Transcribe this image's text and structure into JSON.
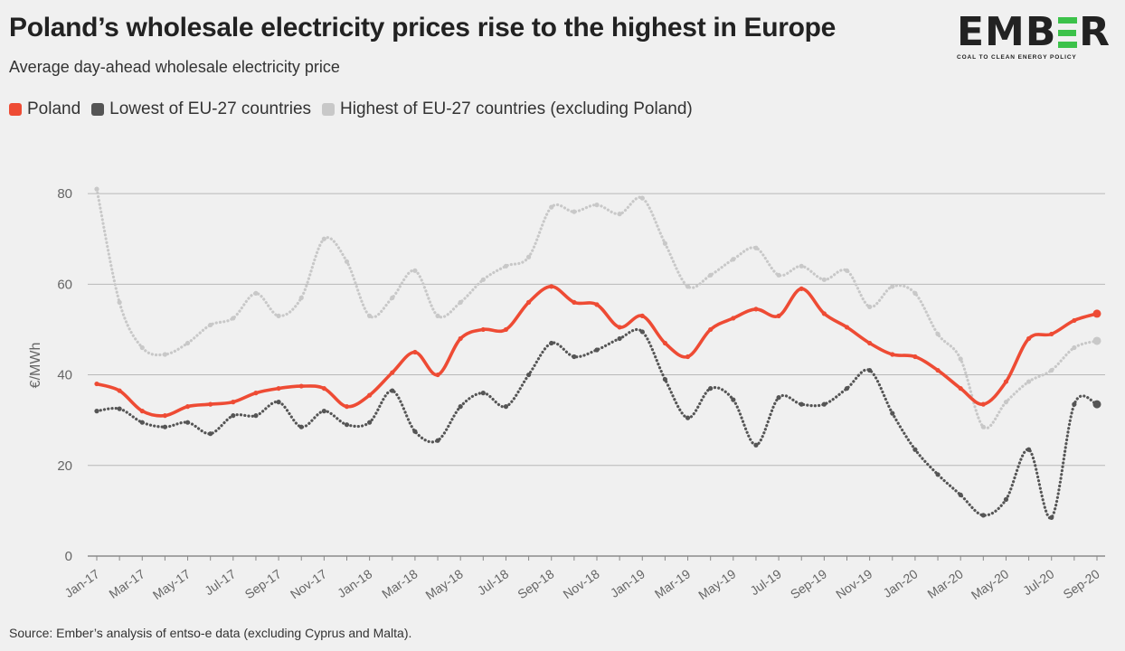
{
  "header": {
    "title": "Poland’s wholesale electricity prices rise to the highest in Europe",
    "subtitle": "Average day-ahead wholesale electricity price"
  },
  "logo": {
    "word_left": "EMB",
    "word_right": "R",
    "tagline": "COAL TO CLEAN ENERGY POLICY",
    "accent_color": "#3cc24a"
  },
  "footer": {
    "source": "Source: Ember’s analysis of entso-e data (excluding Cyprus and Malta)."
  },
  "chart_data": {
    "type": "line",
    "title": "",
    "ylabel": "€/MWh",
    "xlabel": "",
    "ylim": [
      0,
      90
    ],
    "yticks": [
      0,
      20,
      40,
      60,
      80
    ],
    "grid": true,
    "legend_position": "top-left",
    "x_tick_labels": [
      "Jan-17",
      "Mar-17",
      "May-17",
      "Jul-17",
      "Sep-17",
      "Nov-17",
      "Jan-18",
      "Mar-18",
      "May-18",
      "Jul-18",
      "Sep-18",
      "Nov-18",
      "Jan-19",
      "Mar-19",
      "May-19",
      "Jul-19",
      "Sep-19",
      "Nov-19",
      "Jan-20",
      "Mar-20",
      "May-20",
      "Jul-20",
      "Sep-20"
    ],
    "categories": [
      "Jan-17",
      "Feb-17",
      "Mar-17",
      "Apr-17",
      "May-17",
      "Jun-17",
      "Jul-17",
      "Aug-17",
      "Sep-17",
      "Oct-17",
      "Nov-17",
      "Dec-17",
      "Jan-18",
      "Feb-18",
      "Mar-18",
      "Apr-18",
      "May-18",
      "Jun-18",
      "Jul-18",
      "Aug-18",
      "Sep-18",
      "Oct-18",
      "Nov-18",
      "Dec-18",
      "Jan-19",
      "Feb-19",
      "Mar-19",
      "Apr-19",
      "May-19",
      "Jun-19",
      "Jul-19",
      "Aug-19",
      "Sep-19",
      "Oct-19",
      "Nov-19",
      "Dec-19",
      "Jan-20",
      "Feb-20",
      "Mar-20",
      "Apr-20",
      "May-20",
      "Jun-20",
      "Jul-20",
      "Aug-20",
      "Sep-20"
    ],
    "series": [
      {
        "name": "Highest of EU-27 countries (excluding Poland)",
        "color": "#c8c8c8",
        "style": "dotted",
        "values": [
          81,
          56,
          46,
          44.5,
          47,
          51,
          52.5,
          58,
          53,
          57,
          70,
          65,
          53,
          57,
          63,
          53,
          56,
          61,
          64,
          66,
          77,
          76,
          77.5,
          75.5,
          79,
          69,
          59.5,
          62,
          65.5,
          68,
          62,
          64,
          61,
          63,
          55,
          59.5,
          58,
          49,
          43.5,
          28.5,
          34,
          38.5,
          41,
          46,
          47.5
        ]
      },
      {
        "name": "Lowest of EU-27 countries",
        "color": "#555555",
        "style": "dotted",
        "values": [
          32,
          32.5,
          29.5,
          28.5,
          29.5,
          27,
          31,
          31,
          34,
          28.5,
          32,
          29,
          29.5,
          36.5,
          27.5,
          25.5,
          33,
          36,
          33,
          40,
          47,
          44,
          45.5,
          48,
          49.5,
          39,
          30.5,
          37,
          34.5,
          24.5,
          35,
          33.5,
          33.5,
          37,
          41,
          31.5,
          23.5,
          18,
          13.5,
          9,
          12.5,
          23.5,
          8.5,
          33.5,
          33.5
        ]
      },
      {
        "name": "Poland",
        "color": "#ee4b34",
        "style": "solid",
        "values": [
          38,
          36.5,
          32,
          31,
          33,
          33.5,
          34,
          36,
          37,
          37.5,
          37,
          33,
          35.5,
          40.5,
          45,
          40,
          48,
          50,
          50,
          56,
          59.5,
          56,
          55.5,
          50.5,
          53,
          47,
          44,
          50,
          52.5,
          54.5,
          53,
          59,
          53.5,
          50.5,
          47,
          44.5,
          44,
          41,
          37,
          33.5,
          38.5,
          48,
          49,
          52,
          53.5
        ]
      }
    ]
  }
}
